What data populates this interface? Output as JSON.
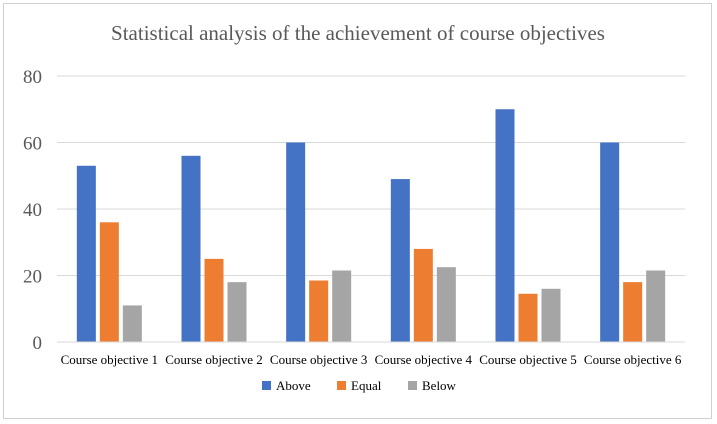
{
  "chart_data": {
    "type": "bar",
    "title": "Statistical analysis of the achievement of course objectives",
    "categories": [
      "Course objective 1",
      "Course objective 2",
      "Course objective 3",
      "Course objective 4",
      "Course objective 5",
      "Course objective 6"
    ],
    "series": [
      {
        "name": "Above",
        "color": "#4472C4",
        "values": [
          53,
          56,
          60,
          49,
          70,
          60
        ]
      },
      {
        "name": "Equal",
        "color": "#ED7D31",
        "values": [
          36,
          25,
          18.5,
          28,
          14.5,
          18
        ]
      },
      {
        "name": "Below",
        "color": "#A5A5A5",
        "values": [
          11,
          18,
          21.5,
          22.5,
          16,
          21.5
        ]
      }
    ],
    "ylim": [
      0,
      80
    ],
    "yticks": [
      0,
      20,
      40,
      60,
      80
    ],
    "grid": true,
    "legend": "bottom"
  }
}
